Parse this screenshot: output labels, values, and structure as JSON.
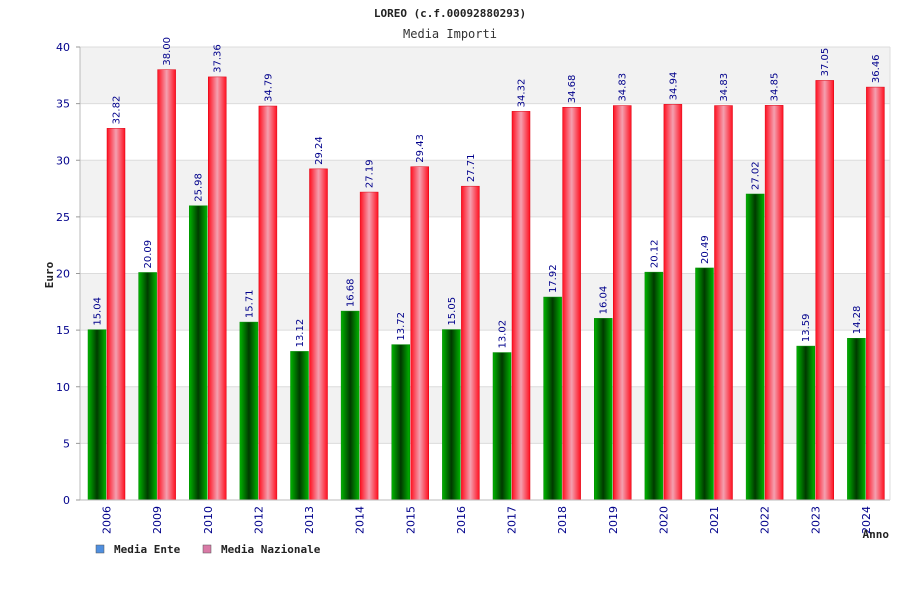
{
  "chart_data": {
    "type": "bar",
    "title": "LOREO (c.f.00092880293)",
    "subtitle": "Media Importi",
    "xlabel": "Anno",
    "ylabel": "Euro",
    "ylim": [
      0,
      40
    ],
    "yticks": [
      0,
      5,
      10,
      15,
      20,
      25,
      30,
      35,
      40
    ],
    "grid": true,
    "legend_position": "bottom-left",
    "categories": [
      "2006",
      "2009",
      "2010",
      "2012",
      "2013",
      "2014",
      "2015",
      "2016",
      "2017",
      "2018",
      "2019",
      "2020",
      "2021",
      "2022",
      "2023",
      "2024"
    ],
    "series": [
      {
        "name": "Media Ente",
        "color": "#00aa00",
        "legend_color": "#4f8fdf",
        "values": [
          15.04,
          20.09,
          25.98,
          15.71,
          13.12,
          16.68,
          13.72,
          15.05,
          13.02,
          17.92,
          16.04,
          20.12,
          20.49,
          27.02,
          13.59,
          14.28
        ],
        "labels": [
          "15.04",
          "20.09",
          "25.98",
          "15.71",
          "13.12",
          "16.68",
          "13.72",
          "15.05",
          "13.02",
          "17.92",
          "16.04",
          "20.12",
          "20.49",
          "27.02",
          "13.59",
          "14.28"
        ]
      },
      {
        "name": "Media Nazionale",
        "color": "#ee1122",
        "legend_color": "#d97aa6",
        "values": [
          32.82,
          38.0,
          37.36,
          34.79,
          29.24,
          27.19,
          29.43,
          27.71,
          34.32,
          34.68,
          34.83,
          34.94,
          34.83,
          34.85,
          37.05,
          36.46
        ],
        "labels": [
          "32.82",
          "38.00",
          "37.36",
          "34.79",
          "29.24",
          "27.19",
          "29.43",
          "27.71",
          "34.32",
          "34.68",
          "34.83",
          "34.94",
          "34.83",
          "34.85",
          "37.05",
          "36.46"
        ]
      }
    ]
  }
}
